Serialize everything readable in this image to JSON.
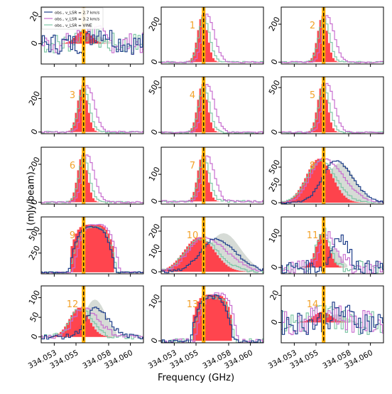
{
  "figure": {
    "ylabel": "I (mJy/beam)",
    "xlabel": "Frequency (GHz)"
  },
  "legend": {
    "entries": [
      {
        "label": "obs., v_LSR = 2.7 km/s",
        "color": "#1f3f8a"
      },
      {
        "label": "obs., v_LSR = 3.2 km/s",
        "color": "#c86fd0"
      },
      {
        "label": "obs., v_LSR = VINE",
        "color": "#7fc7a6"
      }
    ]
  },
  "colors": {
    "fill_red": "#ff3b45",
    "fill_grey": "#d6dbd6",
    "line_navy": "#1f3f8a",
    "line_purple": "#c86fd0",
    "line_green": "#7fc7a6",
    "vline_orange": "#ffb000",
    "vline_black": "#000000",
    "panel_label": "#f2a22a"
  },
  "chart_data": {
    "type": "line",
    "x_ticks": [
      "334.053",
      "334.055",
      "334.058",
      "334.060"
    ],
    "x_tick_values": [
      334.053,
      334.055,
      334.058,
      334.06
    ],
    "xlim": [
      334.0518,
      334.0612
    ],
    "vline_x": 334.0557,
    "panels": [
      {
        "id": "0",
        "label": "",
        "ylim": [
          -15,
          27
        ],
        "yticks": [
          {
            "v": 0,
            "t": "0"
          },
          {
            "v": 20,
            "t": "20"
          }
        ],
        "center": 334.0557,
        "width": 0.0007,
        "peak": 10,
        "grey_peak": 6,
        "kind": "noisy",
        "noise": 8
      },
      {
        "id": "1",
        "label": "1",
        "ylim": [
          -10,
          290
        ],
        "yticks": [
          {
            "v": 0,
            "t": "0"
          },
          {
            "v": 200,
            "t": "200"
          }
        ],
        "center": 334.0556,
        "width": 0.00045,
        "peak": 250,
        "grey_peak": 0,
        "kind": "narrow",
        "noise": 4
      },
      {
        "id": "2",
        "label": "2",
        "ylim": [
          -10,
          290
        ],
        "yticks": [
          {
            "v": 0,
            "t": "0"
          },
          {
            "v": 200,
            "t": "200"
          }
        ],
        "center": 334.0556,
        "width": 0.00045,
        "peak": 245,
        "grey_peak": 0,
        "kind": "narrow",
        "noise": 4
      },
      {
        "id": "3",
        "label": "3",
        "ylim": [
          -10,
          330
        ],
        "yticks": [
          {
            "v": 0,
            "t": "0"
          },
          {
            "v": 200,
            "t": "200"
          }
        ],
        "center": 334.0556,
        "width": 0.00045,
        "peak": 280,
        "grey_peak": 0,
        "kind": "narrow",
        "noise": 5
      },
      {
        "id": "4",
        "label": "4",
        "ylim": [
          -15,
          620
        ],
        "yticks": [
          {
            "v": 0,
            "t": "0"
          },
          {
            "v": 500,
            "t": "500"
          }
        ],
        "center": 334.0556,
        "width": 0.00045,
        "peak": 540,
        "grey_peak": 0,
        "kind": "narrow",
        "noise": 8
      },
      {
        "id": "5",
        "label": "5",
        "ylim": [
          -15,
          620
        ],
        "yticks": [
          {
            "v": 0,
            "t": "0"
          },
          {
            "v": 500,
            "t": "500"
          }
        ],
        "center": 334.0556,
        "width": 0.00045,
        "peak": 540,
        "grey_peak": 0,
        "kind": "narrow",
        "noise": 8
      },
      {
        "id": "6",
        "label": "6",
        "ylim": [
          -10,
          290
        ],
        "yticks": [
          {
            "v": 0,
            "t": "0"
          },
          {
            "v": 200,
            "t": "200"
          }
        ],
        "center": 334.0556,
        "width": 0.00045,
        "peak": 250,
        "grey_peak": 0,
        "kind": "narrow",
        "noise": 4
      },
      {
        "id": "7",
        "label": "7",
        "ylim": [
          -10,
          200
        ],
        "yticks": [
          {
            "v": 0,
            "t": "0"
          },
          {
            "v": 100,
            "t": "100"
          }
        ],
        "center": 334.0556,
        "width": 0.00045,
        "peak": 170,
        "grey_peak": 0,
        "kind": "narrow",
        "noise": 4
      },
      {
        "id": "8",
        "label": "8",
        "ylim": [
          -20,
          780
        ],
        "yticks": [
          {
            "v": 0,
            "t": "0"
          },
          {
            "v": 250,
            "t": "250"
          },
          {
            "v": 500,
            "t": "500"
          }
        ],
        "center": 334.0553,
        "width": 0.0012,
        "peak": 620,
        "grey_peak": 560,
        "kind": "wide2",
        "noise": 10
      },
      {
        "id": "9",
        "label": "9",
        "ylim": [
          -20,
          720
        ],
        "yticks": [
          {
            "v": 250,
            "t": "250"
          },
          {
            "v": 500,
            "t": "500"
          }
        ],
        "center": 334.0565,
        "width": 0.0024,
        "peak": 620,
        "grey_peak": 0,
        "kind": "broad",
        "noise": 8
      },
      {
        "id": "10",
        "label": "10",
        "ylim": [
          -10,
          270
        ],
        "yticks": [
          {
            "v": 0,
            "t": "0"
          },
          {
            "v": 100,
            "t": "100"
          },
          {
            "v": 200,
            "t": "200"
          }
        ],
        "center": 334.0553,
        "width": 0.0014,
        "peak": 170,
        "grey_peak": 190,
        "kind": "wide2",
        "noise": 6
      },
      {
        "id": "11",
        "label": "11",
        "ylim": [
          -20,
          160
        ],
        "yticks": [
          {
            "v": 0,
            "t": "0"
          },
          {
            "v": 100,
            "t": "100"
          }
        ],
        "center": 334.0556,
        "width": 0.0006,
        "peak": 110,
        "grey_peak": 60,
        "kind": "noisy",
        "noise": 22
      },
      {
        "id": "12",
        "label": "12",
        "ylim": [
          -15,
          130
        ],
        "yticks": [
          {
            "v": 0,
            "t": "0"
          },
          {
            "v": 50,
            "t": "50"
          },
          {
            "v": 100,
            "t": "100"
          }
        ],
        "center": 334.0553,
        "width": 0.0009,
        "peak": 75,
        "grey_peak": 95,
        "kind": "wide2",
        "noise": 6
      },
      {
        "id": "13",
        "label": "13",
        "ylim": [
          -5,
          140
        ],
        "yticks": [
          {
            "v": 0,
            "t": "0"
          },
          {
            "v": 100,
            "t": "100"
          }
        ],
        "center": 334.0565,
        "width": 0.0022,
        "peak": 118,
        "grey_peak": 0,
        "kind": "broad",
        "noise": 6
      },
      {
        "id": "14",
        "label": "14",
        "ylim": [
          -15,
          27
        ],
        "yticks": [
          {
            "v": 0,
            "t": "0"
          },
          {
            "v": 20,
            "t": "20"
          }
        ],
        "center": 334.0556,
        "width": 0.0008,
        "peak": 8,
        "grey_peak": 6,
        "kind": "noisy",
        "noise": 9
      }
    ]
  }
}
